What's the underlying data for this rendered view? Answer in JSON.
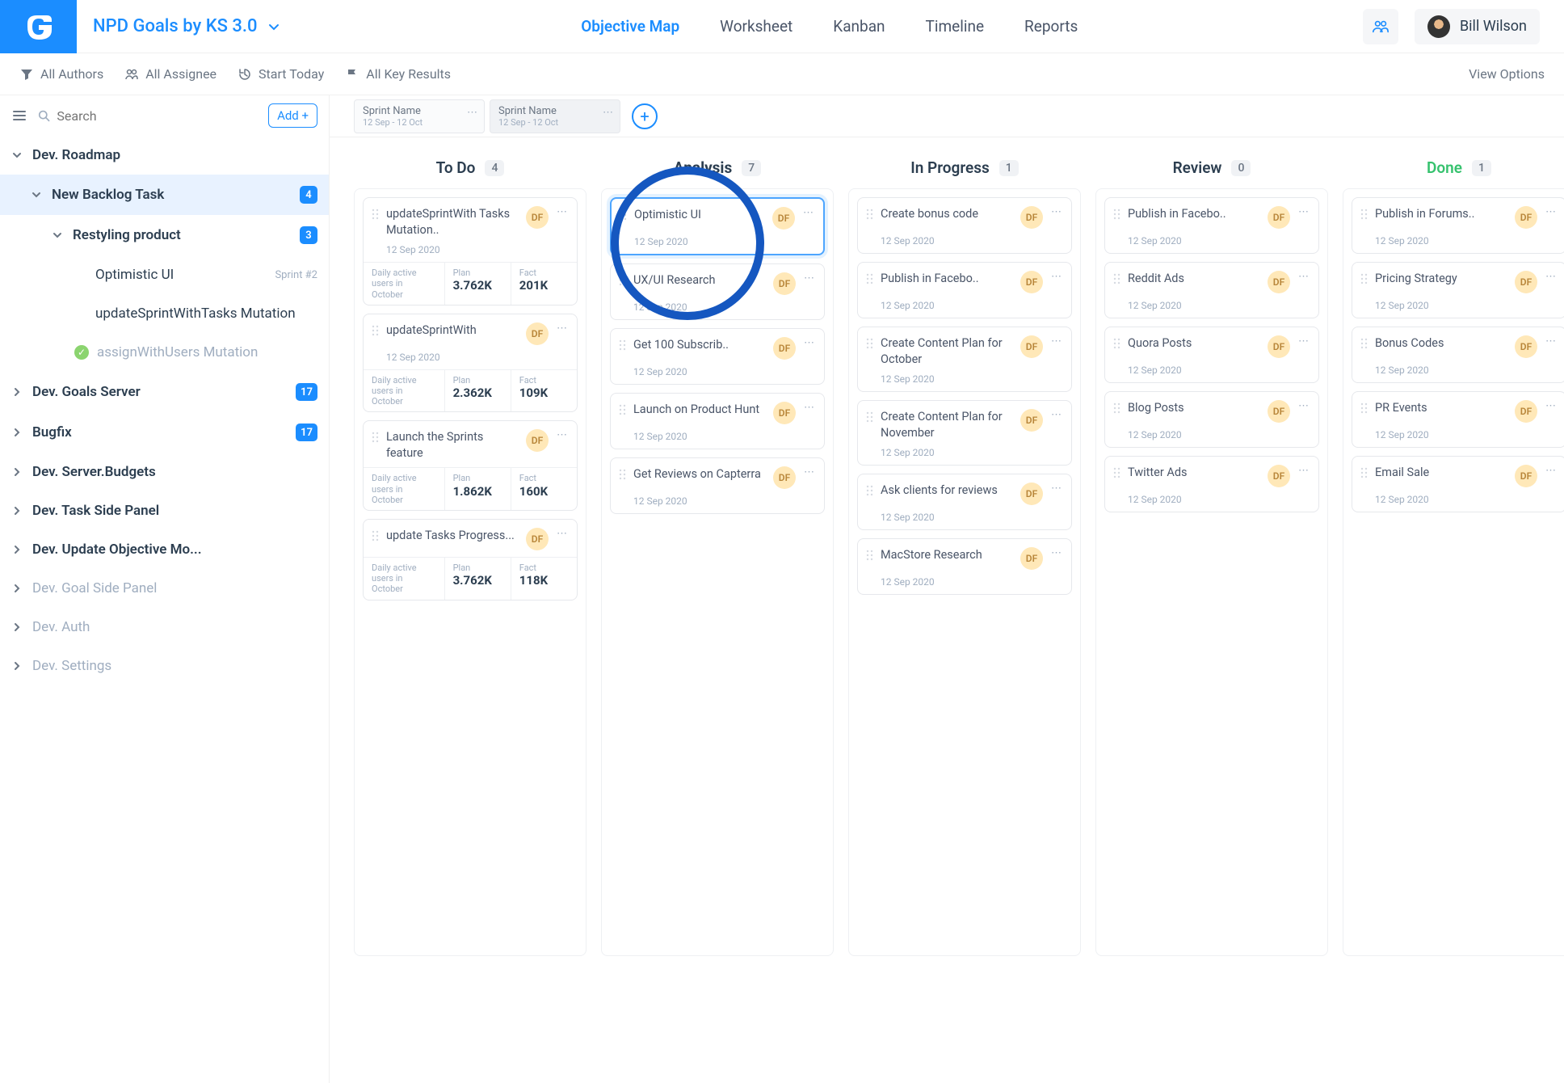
{
  "header": {
    "project_title": "NPD Goals by KS 3.0",
    "tabs": [
      "Objective Map",
      "Worksheet",
      "Kanban",
      "Timeline",
      "Reports"
    ],
    "active_tab": 0,
    "user_name": "Bill Wilson"
  },
  "filters": {
    "authors": "All Authors",
    "assignee": "All Assignee",
    "start": "Start Today",
    "keyresults": "All Key Results",
    "view_options": "View Options"
  },
  "sidebar": {
    "search_placeholder": "Search",
    "add_label": "Add +",
    "tree": [
      {
        "label": "Dev. Roadmap",
        "bold": true,
        "chev": "down",
        "indent": 0
      },
      {
        "label": "New Backlog Task",
        "bold": true,
        "chev": "down",
        "indent": 1,
        "badge": "4",
        "selected": true
      },
      {
        "label": "Restyling product",
        "bold": true,
        "chev": "down",
        "indent": 2,
        "badge": "3"
      },
      {
        "label": "Optimistic UI",
        "indent": 3,
        "meta": "Sprint #2"
      },
      {
        "label": "updateSprintWithTasks Mutation",
        "indent": 3
      },
      {
        "label": "assignWithUsers Mutation",
        "indent": 3,
        "faded": true,
        "check": true
      },
      {
        "label": "Dev. Goals Server",
        "bold": true,
        "chev": "right",
        "indent": 0,
        "badge": "17"
      },
      {
        "label": "Bugfix",
        "bold": true,
        "chev": "right",
        "indent": 0,
        "badge": "17"
      },
      {
        "label": "Dev. Server.Budgets",
        "bold": true,
        "chev": "right",
        "indent": 0
      },
      {
        "label": "Dev. Task Side Panel",
        "bold": true,
        "chev": "right",
        "indent": 0
      },
      {
        "label": "Dev. Update Objective Mo...",
        "bold": true,
        "chev": "right",
        "indent": 0
      },
      {
        "label": "Dev. Goal Side Panel",
        "chev": "right",
        "indent": 0,
        "faded": true
      },
      {
        "label": "Dev. Auth",
        "chev": "right",
        "indent": 0,
        "faded": true
      },
      {
        "label": "Dev. Settings",
        "chev": "right",
        "indent": 0,
        "faded": true
      }
    ]
  },
  "sprints": [
    {
      "name": "Sprint Name",
      "dates": "12 Sep - 12 Oct",
      "active": false
    },
    {
      "name": "Sprint Name",
      "dates": "12 Sep - 12 Oct",
      "active": true
    }
  ],
  "columns": [
    {
      "title": "To Do",
      "count": "4",
      "style": "normal",
      "cards": [
        {
          "title": "updateSprintWith Tasks Mutation..",
          "date": "12 Sep 2020",
          "av": "DF",
          "metrics": {
            "label": "Daily active users in October",
            "plan": "3.762K",
            "fact": "201K"
          }
        },
        {
          "title": "updateSprintWith",
          "date": "12 Sep 2020",
          "av": "DF",
          "metrics": {
            "label": "Daily active users in October",
            "plan": "2.362K",
            "fact": "109K"
          }
        },
        {
          "title": "Launch the Sprints feature",
          "date": "",
          "av": "DF",
          "metrics": {
            "label": "Daily active users in October",
            "plan": "1.862K",
            "fact": "160K"
          }
        },
        {
          "title": "update Tasks Progress...",
          "date": "",
          "av": "DF",
          "metrics": {
            "label": "Daily active users in October",
            "plan": "3.762K",
            "fact": "118K"
          }
        }
      ]
    },
    {
      "title": "Analysis",
      "count": "7",
      "style": "analysis",
      "cards": [
        {
          "title": "Optimistic UI",
          "date": "12 Sep 2020",
          "av": "DF",
          "highlight": true
        },
        {
          "title": "UX/UI Research",
          "date": "12 Sep 2020",
          "av": "DF"
        },
        {
          "title": "Get 100 Subscrib..",
          "date": "12 Sep 2020",
          "av": "DF"
        },
        {
          "title": "Launch on Product Hunt",
          "date": "12 Sep 2020",
          "av": "DF"
        },
        {
          "title": "Get Reviews on Capterra",
          "date": "12 Sep 2020",
          "av": "DF"
        }
      ]
    },
    {
      "title": "In Progress",
      "count": "1",
      "style": "normal",
      "cards": [
        {
          "title": "Create bonus code",
          "date": "12 Sep 2020",
          "av": "DF"
        },
        {
          "title": "Publish in Facebo..",
          "date": "12 Sep 2020",
          "av": "DF"
        },
        {
          "title": "Create Content Plan for October",
          "date": "12 Sep 2020",
          "av": "DF"
        },
        {
          "title": "Create Content Plan for November",
          "date": "12 Sep 2020",
          "av": "DF"
        },
        {
          "title": "Ask clients for reviews",
          "date": "12 Sep 2020",
          "av": "DF"
        },
        {
          "title": "MacStore Research",
          "date": "12 Sep 2020",
          "av": "DF"
        }
      ]
    },
    {
      "title": "Review",
      "count": "0",
      "style": "normal",
      "cards": [
        {
          "title": "Publish in Facebo..",
          "date": "12 Sep 2020",
          "av": "DF"
        },
        {
          "title": "Reddit Ads",
          "date": "12 Sep 2020",
          "av": "DF"
        },
        {
          "title": "Quora Posts",
          "date": "12 Sep 2020",
          "av": "DF"
        },
        {
          "title": "Blog Posts",
          "date": "12 Sep 2020",
          "av": "DF"
        },
        {
          "title": "Twitter Ads",
          "date": "12 Sep 2020",
          "av": "DF"
        }
      ]
    },
    {
      "title": "Done",
      "count": "1",
      "style": "done",
      "cards": [
        {
          "title": "Publish in Forums..",
          "date": "12 Sep 2020",
          "av": "DF"
        },
        {
          "title": "Pricing Strategy",
          "date": "12 Sep 2020",
          "av": "DF"
        },
        {
          "title": "Bonus Codes",
          "date": "12 Sep 2020",
          "av": "DF"
        },
        {
          "title": "PR Events",
          "date": "12 Sep 2020",
          "av": "DF"
        },
        {
          "title": "Email Sale",
          "date": "12 Sep 2020",
          "av": "DF"
        }
      ]
    }
  ],
  "labels": {
    "plan": "Plan",
    "fact": "Fact"
  },
  "colors": {
    "brand": "#1b8dff",
    "done": "#36c26e",
    "avatar_bg": "#ffe8b8",
    "avatar_fg": "#b8863a",
    "annot": "#1557c0"
  }
}
